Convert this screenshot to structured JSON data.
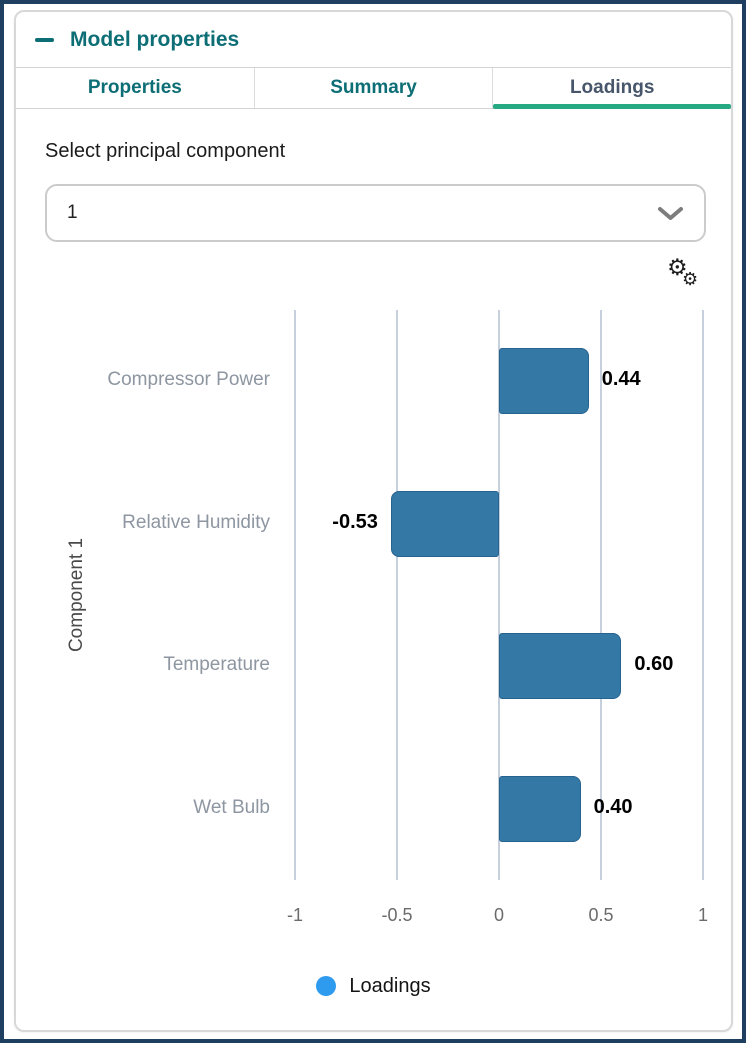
{
  "panel": {
    "title": "Model properties"
  },
  "tabs": [
    {
      "label": "Properties",
      "active": false
    },
    {
      "label": "Summary",
      "active": false
    },
    {
      "label": "Loadings",
      "active": true
    }
  ],
  "pc_select": {
    "label": "Select principal component",
    "value": "1"
  },
  "icons": {
    "collapse": "minus-icon",
    "settings": "double-gear-icon",
    "dropdown": "chevron-down-icon",
    "legend_marker": "circle-icon"
  },
  "chart_data": {
    "type": "bar",
    "orientation": "horizontal",
    "title": "",
    "xlabel": "",
    "ylabel": "Component 1",
    "categories": [
      "Compressor Power",
      "Relative Humidity",
      "Temperature",
      "Wet Bulb"
    ],
    "series": [
      {
        "name": "Loadings",
        "values": [
          0.44,
          -0.53,
          0.6,
          0.4
        ]
      }
    ],
    "value_labels": [
      "0.44",
      "-0.53",
      "0.60",
      "0.40"
    ],
    "xlim": [
      -1,
      1
    ],
    "x_ticks": [
      {
        "label": "-1",
        "value": -1
      },
      {
        "label": "-0.5",
        "value": -0.5
      },
      {
        "label": "0",
        "value": 0
      },
      {
        "label": "0.5",
        "value": 0.5
      },
      {
        "label": "1",
        "value": 1
      }
    ],
    "grid": true,
    "legend": {
      "position": "bottom",
      "entries": [
        {
          "label": "Loadings",
          "color": "#2f9bee"
        }
      ]
    },
    "bar_color": "#3478a6"
  },
  "colors": {
    "frame_border": "#1f3f60",
    "accent_teal": "#0d6e75",
    "active_tab_text": "#47566b",
    "active_tab_underline": "#27a983",
    "bar_fill": "#3478a6",
    "bar_border": "#27638f",
    "gridline": "#c6d0dd",
    "legend_dot": "#2f9bee",
    "category_label_text": "#8d96a1"
  }
}
